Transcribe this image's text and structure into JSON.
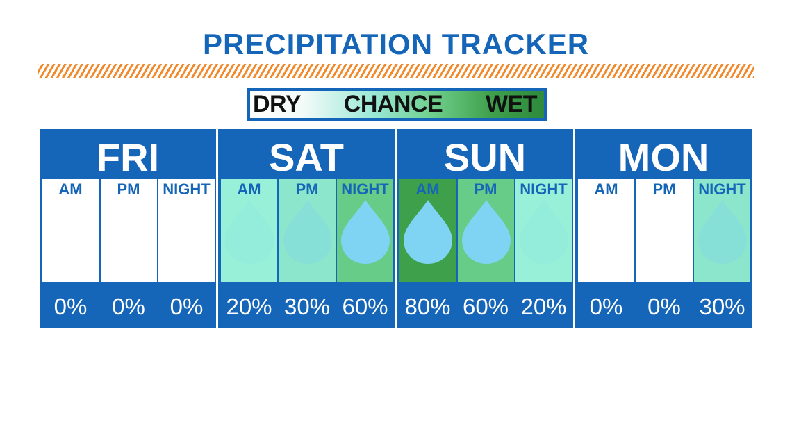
{
  "title": "PRECIPITATION TRACKER",
  "legend": {
    "dry": "DRY",
    "chance": "CHANCE",
    "wet": "WET"
  },
  "chart_data": {
    "type": "table",
    "title": "PRECIPITATION TRACKER",
    "unit": "%",
    "days": [
      {
        "name": "FRI",
        "periods": [
          {
            "label": "AM",
            "value": 0,
            "text": "0%"
          },
          {
            "label": "PM",
            "value": 0,
            "text": "0%"
          },
          {
            "label": "NIGHT",
            "value": 0,
            "text": "0%"
          }
        ]
      },
      {
        "name": "SAT",
        "periods": [
          {
            "label": "AM",
            "value": 20,
            "text": "20%"
          },
          {
            "label": "PM",
            "value": 30,
            "text": "30%"
          },
          {
            "label": "NIGHT",
            "value": 60,
            "text": "60%"
          }
        ]
      },
      {
        "name": "SUN",
        "periods": [
          {
            "label": "AM",
            "value": 80,
            "text": "80%"
          },
          {
            "label": "PM",
            "value": 60,
            "text": "60%"
          },
          {
            "label": "NIGHT",
            "value": 20,
            "text": "20%"
          }
        ]
      },
      {
        "name": "MON",
        "periods": [
          {
            "label": "AM",
            "value": 0,
            "text": "0%"
          },
          {
            "label": "PM",
            "value": 0,
            "text": "0%"
          },
          {
            "label": "NIGHT",
            "value": 30,
            "text": "30%"
          }
        ]
      }
    ]
  },
  "colors": {
    "brand_blue": "#1565b8",
    "accent_orange": "#f28a2c",
    "drop_blue": "#7fd3f3",
    "dry": "#ffffff",
    "chance_light": "#98f0d8",
    "chance": "#8ce6cc",
    "wet_mid": "#66cc88",
    "wet": "#3fa04c"
  }
}
